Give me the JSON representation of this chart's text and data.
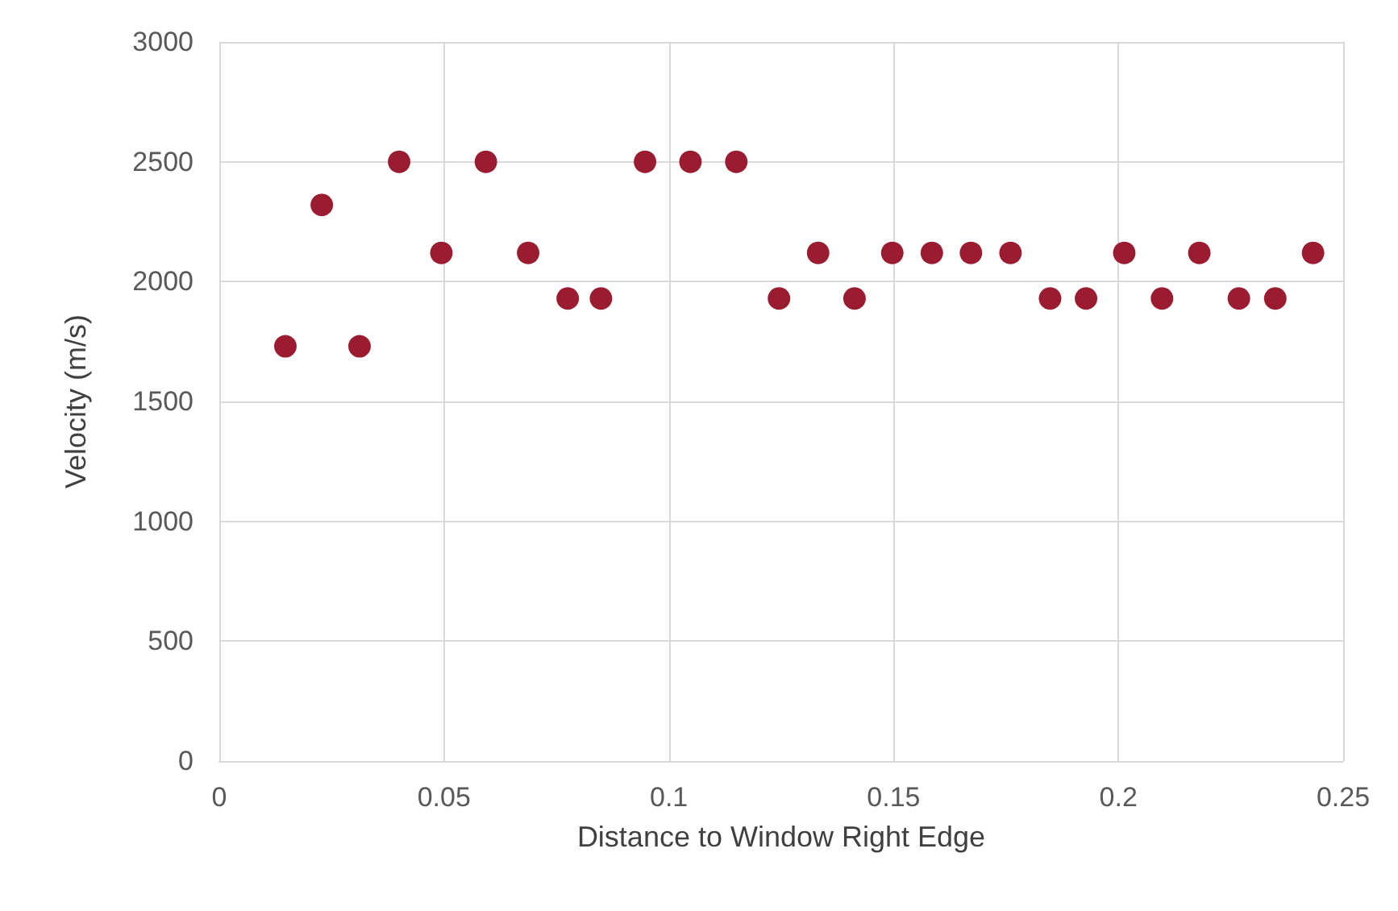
{
  "chart_data": {
    "type": "scatter",
    "xlabel": "Distance to Window Right Edge",
    "ylabel": "Velocity (m/s)",
    "x": [
      0.0147,
      0.0228,
      0.0312,
      0.04,
      0.0494,
      0.0593,
      0.0687,
      0.0775,
      0.0849,
      0.0947,
      0.1048,
      0.115,
      0.1245,
      0.1332,
      0.1413,
      0.1497,
      0.1585,
      0.1672,
      0.176,
      0.1848,
      0.1928,
      0.2013,
      0.2097,
      0.218,
      0.2268,
      0.2349,
      0.2433
    ],
    "series": [
      {
        "color": "#9b1b30",
        "values": [
          1730,
          2320,
          1730,
          2500,
          2120,
          2500,
          2120,
          1930,
          1930,
          2500,
          2500,
          2500,
          1930,
          2120,
          1930,
          2120,
          2120,
          2120,
          2120,
          1930,
          1930,
          2120,
          1930,
          2120,
          1930,
          1930,
          2120
        ]
      }
    ],
    "xlim": [
      0,
      0.25
    ],
    "xticks": [
      0,
      0.05,
      0.1,
      0.15,
      0.2,
      0.25
    ],
    "ylim": [
      0,
      3000
    ],
    "yticks": [
      0,
      500,
      1000,
      1500,
      2000,
      2500,
      3000
    ],
    "grid": true,
    "marker": "circle"
  }
}
